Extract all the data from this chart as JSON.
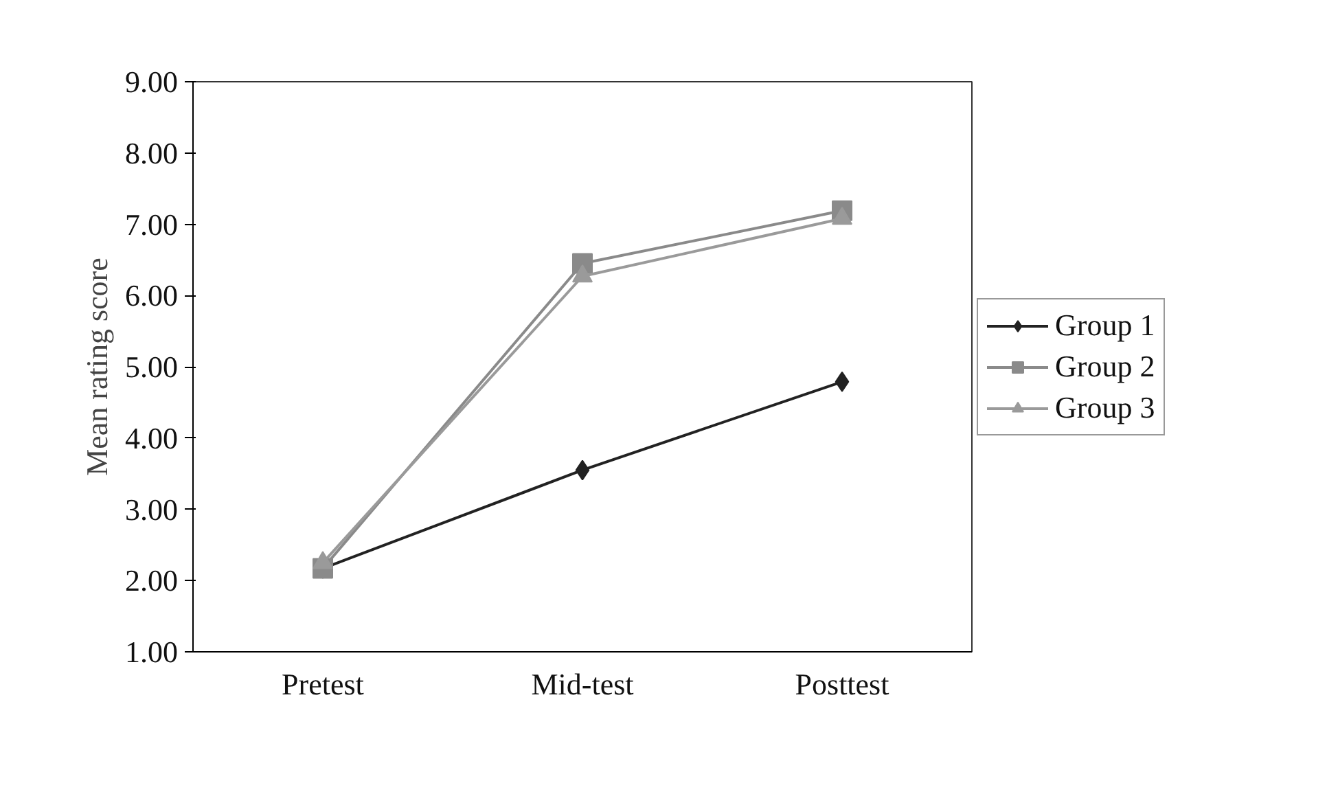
{
  "chart_data": {
    "type": "line",
    "ylabel": "Mean rating score",
    "categories": [
      "Pretest",
      "Mid-test",
      "Posttest"
    ],
    "series": [
      {
        "name": "Group 1",
        "color": "#222222",
        "marker": "diamond",
        "values": [
          2.17,
          3.55,
          4.79
        ]
      },
      {
        "name": "Group 2",
        "color": "#8a8a8a",
        "marker": "square",
        "values": [
          2.17,
          6.45,
          7.19
        ]
      },
      {
        "name": "Group 3",
        "color": "#9a9a9a",
        "marker": "triangle",
        "values": [
          2.25,
          6.27,
          7.08
        ]
      }
    ],
    "ylim": [
      1,
      9
    ],
    "yticks": [
      {
        "value": 1,
        "label": "1.00"
      },
      {
        "value": 2,
        "label": "2.00"
      },
      {
        "value": 3,
        "label": "3.00"
      },
      {
        "value": 4,
        "label": "4.00"
      },
      {
        "value": 5,
        "label": "5.00"
      },
      {
        "value": 6,
        "label": "6.00"
      },
      {
        "value": 7,
        "label": "7.00"
      },
      {
        "value": 8,
        "label": "8.00"
      },
      {
        "value": 9,
        "label": "9.00"
      }
    ],
    "grid": false,
    "legend": "right",
    "line_style": "solid"
  }
}
